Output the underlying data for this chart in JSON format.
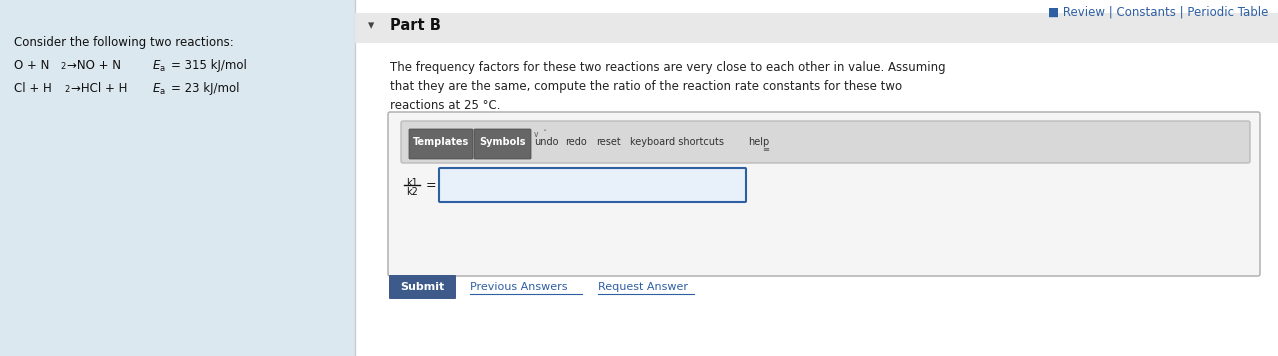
{
  "bg_color": "#ffffff",
  "left_panel_bg": "#dce8f0",
  "top_bar_text": "■ Review | Constants | Periodic Table",
  "top_bar_color": "#2e5fa3",
  "consider_text": "Consider the following two reactions:",
  "body_text_line1": "The frequency factors for these two reactions are very close to each other in value. Assuming",
  "body_text_line2": "that they are the same, compute the ratio of the reaction rate constants for these two",
  "body_text_line3": "reactions at 25 °C.",
  "body_color": "#222222",
  "part_b_text": "Part B",
  "submit_btn_text": "Submit",
  "submit_btn_bg": "#3d5a8a",
  "submit_btn_color": "#ffffff",
  "prev_ans_text": "Previous Answers",
  "req_ans_text": "Request Answer",
  "link_color": "#2e5fa3",
  "divider_color": "#cccccc",
  "outer_box_border": "#aaaaaa",
  "outer_box_bg": "#f5f5f5",
  "toolbar_bg": "#d8d8d8",
  "toolbar_border": "#bbbbbb",
  "btn_bg": "#666666",
  "btn_border": "#444444",
  "input_box_border": "#2e5fa3",
  "input_box_bg": "#e8f0fa"
}
